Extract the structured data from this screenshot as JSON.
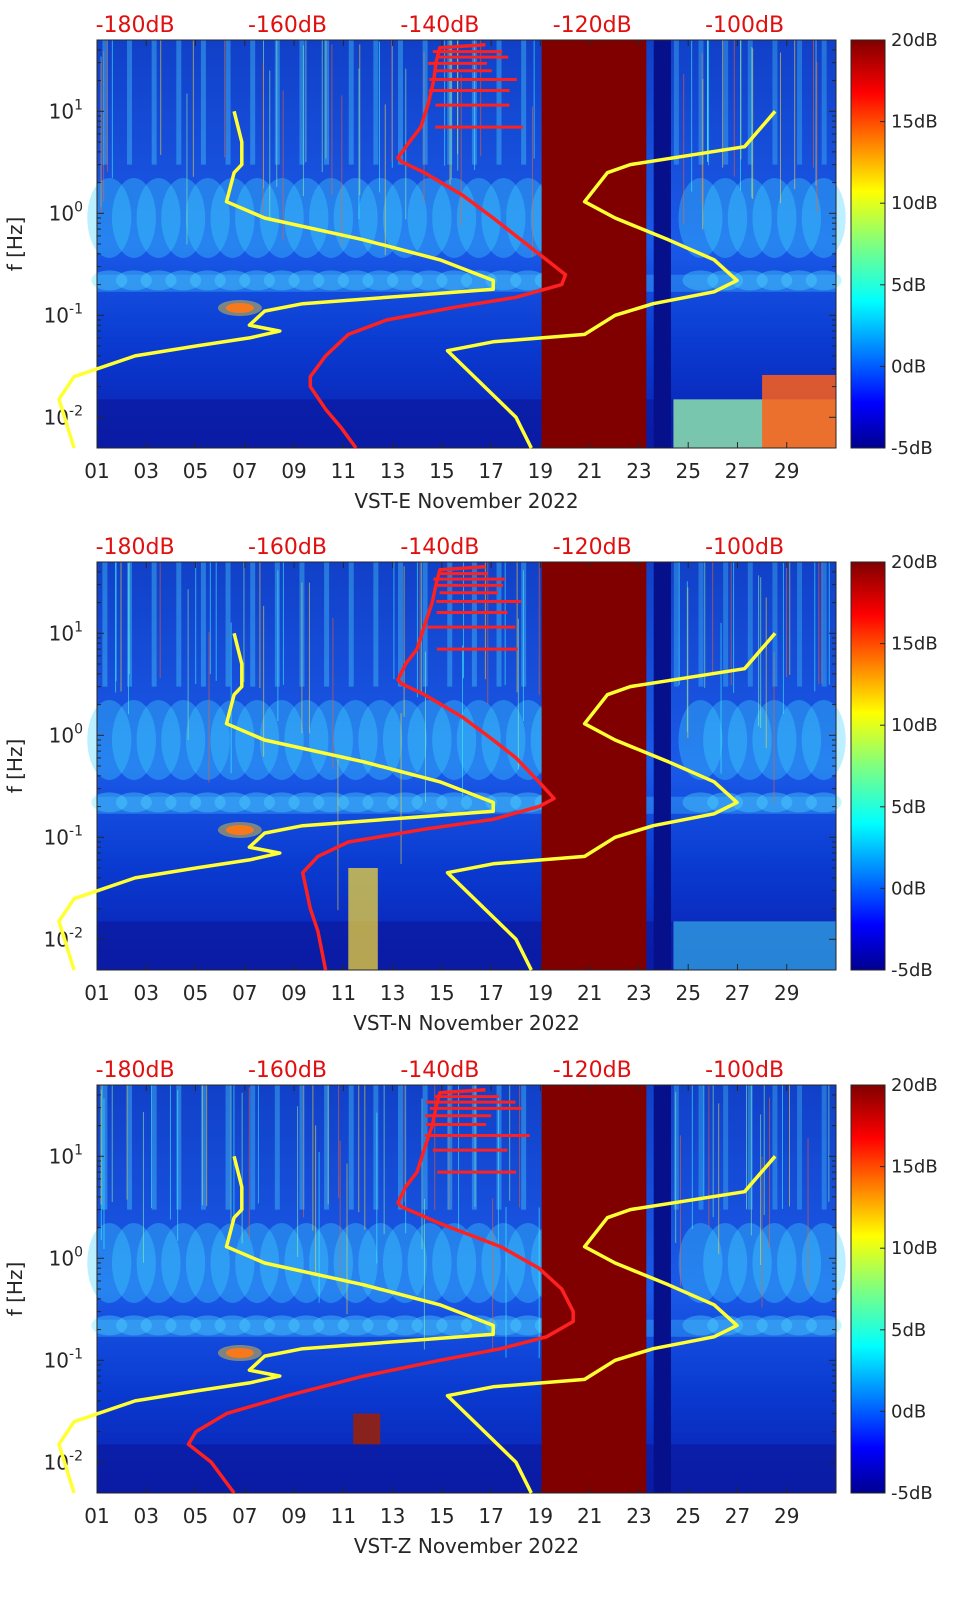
{
  "chart_data": [
    {
      "type": "heatmap",
      "station": "VST-E",
      "xlabel": "VST-E November 2022",
      "ylabel": "f [Hz]",
      "x_ticks": [
        "01",
        "03",
        "05",
        "07",
        "09",
        "11",
        "13",
        "15",
        "17",
        "19",
        "21",
        "23",
        "25",
        "27",
        "29"
      ],
      "x_tick_days": [
        1,
        3,
        5,
        7,
        9,
        11,
        13,
        15,
        17,
        19,
        21,
        23,
        25,
        27,
        29
      ],
      "xlim_days": [
        1,
        31
      ],
      "y_scale": "log",
      "ylim_hz": [
        0.005,
        50
      ],
      "y_ticks": [
        "10-2",
        "10-1",
        "100",
        "101"
      ],
      "y_tick_values": [
        0.01,
        0.1,
        1,
        10
      ],
      "top_axis_ticks": [
        "-180dB",
        "-160dB",
        "-140dB",
        "-120dB",
        "-100dB"
      ],
      "top_axis_values_db": [
        -180,
        -160,
        -140,
        -120,
        -100
      ],
      "colorbar": {
        "ticks": [
          "20dB",
          "15dB",
          "10dB",
          "5dB",
          "0dB",
          "-5dB"
        ],
        "range_db": [
          -5,
          20
        ],
        "colormap": "jet"
      },
      "saturated_band_days": [
        19.05,
        23.3
      ],
      "gap_band_days": [
        23.6,
        24.3
      ],
      "series": [
        {
          "color": "#ff2020",
          "points": [
            [
              -134,
              45
            ],
            [
              -140,
              42
            ],
            [
              -140.5,
              30
            ],
            [
              -140.8,
              20
            ],
            [
              -141.5,
              12
            ],
            [
              -142.5,
              7
            ],
            [
              -144,
              5
            ],
            [
              -145.5,
              3.5
            ],
            [
              -145,
              3.2
            ],
            [
              -142,
              2.5
            ],
            [
              -137,
              1.5
            ],
            [
              -133,
              0.9
            ],
            [
              -130,
              0.6
            ],
            [
              -126,
              0.35
            ],
            [
              -123.5,
              0.25
            ],
            [
              -124,
              0.2
            ],
            [
              -130,
              0.15
            ],
            [
              -138,
              0.12
            ],
            [
              -147,
              0.09
            ],
            [
              -152,
              0.065
            ],
            [
              -155,
              0.04
            ],
            [
              -157,
              0.025
            ],
            [
              -157,
              0.02
            ],
            [
              -155,
              0.012
            ],
            [
              -153,
              0.008
            ],
            [
              -151,
              0.005
            ]
          ]
        },
        {
          "color": "#ffff33",
          "points": [
            [
              -167,
              10
            ],
            [
              -166,
              5
            ],
            [
              -166,
              3
            ],
            [
              -167,
              2.5
            ],
            [
              -168,
              1.3
            ],
            [
              -163,
              0.9
            ],
            [
              -150,
              0.55
            ],
            [
              -140,
              0.35
            ],
            [
              -133,
              0.22
            ],
            [
              -133,
              0.18
            ],
            [
              -142,
              0.16
            ],
            [
              -158,
              0.13
            ],
            [
              -163,
              0.11
            ],
            [
              -165,
              0.08
            ],
            [
              -161,
              0.07
            ],
            [
              -165,
              0.06
            ],
            [
              -172,
              0.05
            ],
            [
              -180,
              0.04
            ],
            [
              -188,
              0.025
            ],
            [
              -190,
              0.015
            ],
            [
              -188,
              0.005
            ]
          ]
        },
        {
          "color": "#ffff33",
          "points": [
            [
              -96,
              10
            ],
            [
              -100,
              4.5
            ],
            [
              -115,
              3
            ],
            [
              -118,
              2.5
            ],
            [
              -121,
              1.3
            ],
            [
              -117,
              0.9
            ],
            [
              -110,
              0.55
            ],
            [
              -104,
              0.35
            ],
            [
              -101,
              0.22
            ],
            [
              -104,
              0.17
            ],
            [
              -112,
              0.13
            ],
            [
              -117,
              0.1
            ],
            [
              -121,
              0.065
            ],
            [
              -133,
              0.055
            ],
            [
              -139,
              0.045
            ],
            [
              -130,
              0.01
            ],
            [
              -128,
              0.005
            ]
          ]
        }
      ]
    },
    {
      "type": "heatmap",
      "station": "VST-N",
      "xlabel": "VST-N November 2022",
      "ylabel": "f [Hz]",
      "x_ticks": [
        "01",
        "03",
        "05",
        "07",
        "09",
        "11",
        "13",
        "15",
        "17",
        "19",
        "21",
        "23",
        "25",
        "27",
        "29"
      ],
      "x_tick_days": [
        1,
        3,
        5,
        7,
        9,
        11,
        13,
        15,
        17,
        19,
        21,
        23,
        25,
        27,
        29
      ],
      "xlim_days": [
        1,
        31
      ],
      "y_scale": "log",
      "ylim_hz": [
        0.005,
        50
      ],
      "y_ticks": [
        "10-2",
        "10-1",
        "100",
        "101"
      ],
      "y_tick_values": [
        0.01,
        0.1,
        1,
        10
      ],
      "top_axis_ticks": [
        "-180dB",
        "-160dB",
        "-140dB",
        "-120dB",
        "-100dB"
      ],
      "top_axis_values_db": [
        -180,
        -160,
        -140,
        -120,
        -100
      ],
      "colorbar": {
        "ticks": [
          "20dB",
          "15dB",
          "10dB",
          "5dB",
          "0dB",
          "-5dB"
        ],
        "range_db": [
          -5,
          20
        ],
        "colormap": "jet"
      },
      "saturated_band_days": [
        19.05,
        23.3
      ],
      "gap_band_days": [
        23.6,
        24.3
      ],
      "series": [
        {
          "color": "#ff2020",
          "points": [
            [
              -134,
              45
            ],
            [
              -140,
              42
            ],
            [
              -140.5,
              30
            ],
            [
              -141,
              20
            ],
            [
              -142,
              12
            ],
            [
              -143,
              7
            ],
            [
              -144.5,
              5
            ],
            [
              -145.5,
              3.5
            ],
            [
              -145,
              3.2
            ],
            [
              -142,
              2.5
            ],
            [
              -137,
              1.5
            ],
            [
              -133,
              0.9
            ],
            [
              -130,
              0.6
            ],
            [
              -127,
              0.35
            ],
            [
              -125,
              0.24
            ],
            [
              -127,
              0.2
            ],
            [
              -133,
              0.15
            ],
            [
              -142,
              0.12
            ],
            [
              -152,
              0.09
            ],
            [
              -156,
              0.065
            ],
            [
              -158,
              0.045
            ],
            [
              -157.5,
              0.03
            ],
            [
              -157,
              0.02
            ],
            [
              -156,
              0.012
            ],
            [
              -155,
              0.005
            ]
          ]
        },
        {
          "color": "#ffff33",
          "points": [
            [
              -167,
              10
            ],
            [
              -166,
              5
            ],
            [
              -166,
              3
            ],
            [
              -167,
              2.5
            ],
            [
              -168,
              1.3
            ],
            [
              -163,
              0.9
            ],
            [
              -150,
              0.55
            ],
            [
              -140,
              0.35
            ],
            [
              -133,
              0.22
            ],
            [
              -133,
              0.18
            ],
            [
              -142,
              0.16
            ],
            [
              -158,
              0.13
            ],
            [
              -163,
              0.11
            ],
            [
              -165,
              0.08
            ],
            [
              -161,
              0.07
            ],
            [
              -165,
              0.06
            ],
            [
              -172,
              0.05
            ],
            [
              -180,
              0.04
            ],
            [
              -188,
              0.025
            ],
            [
              -190,
              0.015
            ],
            [
              -188,
              0.005
            ]
          ]
        },
        {
          "color": "#ffff33",
          "points": [
            [
              -96,
              10
            ],
            [
              -100,
              4.5
            ],
            [
              -115,
              3
            ],
            [
              -118,
              2.5
            ],
            [
              -121,
              1.3
            ],
            [
              -117,
              0.9
            ],
            [
              -110,
              0.55
            ],
            [
              -104,
              0.35
            ],
            [
              -101,
              0.22
            ],
            [
              -104,
              0.17
            ],
            [
              -112,
              0.13
            ],
            [
              -117,
              0.1
            ],
            [
              -121,
              0.065
            ],
            [
              -133,
              0.055
            ],
            [
              -139,
              0.045
            ],
            [
              -130,
              0.01
            ],
            [
              -128,
              0.005
            ]
          ]
        }
      ]
    },
    {
      "type": "heatmap",
      "station": "VST-Z",
      "xlabel": "VST-Z November 2022",
      "ylabel": "f [Hz]",
      "x_ticks": [
        "01",
        "03",
        "05",
        "07",
        "09",
        "11",
        "13",
        "15",
        "17",
        "19",
        "21",
        "23",
        "25",
        "27",
        "29"
      ],
      "x_tick_days": [
        1,
        3,
        5,
        7,
        9,
        11,
        13,
        15,
        17,
        19,
        21,
        23,
        25,
        27,
        29
      ],
      "xlim_days": [
        1,
        31
      ],
      "y_scale": "log",
      "ylim_hz": [
        0.005,
        50
      ],
      "y_ticks": [
        "10-2",
        "10-1",
        "100",
        "101"
      ],
      "y_tick_values": [
        0.01,
        0.1,
        1,
        10
      ],
      "top_axis_ticks": [
        "-180dB",
        "-160dB",
        "-140dB",
        "-120dB",
        "-100dB"
      ],
      "top_axis_values_db": [
        -180,
        -160,
        -140,
        -120,
        -100
      ],
      "colorbar": {
        "ticks": [
          "20dB",
          "15dB",
          "10dB",
          "5dB",
          "0dB",
          "-5dB"
        ],
        "range_db": [
          -5,
          20
        ],
        "colormap": "jet"
      },
      "saturated_band_days": [
        19.05,
        23.3
      ],
      "gap_band_days": [
        23.6,
        24.3
      ],
      "series": [
        {
          "color": "#ff2020",
          "points": [
            [
              -134,
              45
            ],
            [
              -140,
              42
            ],
            [
              -140.5,
              30
            ],
            [
              -141,
              20
            ],
            [
              -142,
              12
            ],
            [
              -143,
              7
            ],
            [
              -144.5,
              5
            ],
            [
              -145.5,
              3.5
            ],
            [
              -145,
              3.2
            ],
            [
              -140,
              2.2
            ],
            [
              -132,
              1.3
            ],
            [
              -127,
              0.8
            ],
            [
              -124,
              0.5
            ],
            [
              -122.5,
              0.3
            ],
            [
              -122.5,
              0.24
            ],
            [
              -126,
              0.17
            ],
            [
              -132,
              0.13
            ],
            [
              -140,
              0.1
            ],
            [
              -150,
              0.07
            ],
            [
              -160,
              0.045
            ],
            [
              -168,
              0.03
            ],
            [
              -172,
              0.02
            ],
            [
              -173,
              0.015
            ],
            [
              -170,
              0.01
            ],
            [
              -167,
              0.005
            ]
          ]
        },
        {
          "color": "#ffff33",
          "points": [
            [
              -167,
              10
            ],
            [
              -166,
              5
            ],
            [
              -166,
              3
            ],
            [
              -167,
              2.5
            ],
            [
              -168,
              1.3
            ],
            [
              -163,
              0.9
            ],
            [
              -150,
              0.55
            ],
            [
              -140,
              0.35
            ],
            [
              -133,
              0.22
            ],
            [
              -133,
              0.18
            ],
            [
              -142,
              0.16
            ],
            [
              -158,
              0.13
            ],
            [
              -163,
              0.11
            ],
            [
              -165,
              0.08
            ],
            [
              -161,
              0.07
            ],
            [
              -165,
              0.06
            ],
            [
              -172,
              0.05
            ],
            [
              -180,
              0.04
            ],
            [
              -188,
              0.025
            ],
            [
              -190,
              0.015
            ],
            [
              -188,
              0.005
            ]
          ]
        },
        {
          "color": "#ffff33",
          "points": [
            [
              -96,
              10
            ],
            [
              -100,
              4.5
            ],
            [
              -115,
              3
            ],
            [
              -118,
              2.5
            ],
            [
              -121,
              1.3
            ],
            [
              -117,
              0.9
            ],
            [
              -110,
              0.55
            ],
            [
              -104,
              0.35
            ],
            [
              -101,
              0.22
            ],
            [
              -104,
              0.17
            ],
            [
              -112,
              0.13
            ],
            [
              -117,
              0.1
            ],
            [
              -121,
              0.065
            ],
            [
              -133,
              0.055
            ],
            [
              -139,
              0.045
            ],
            [
              -130,
              0.01
            ],
            [
              -128,
              0.005
            ]
          ]
        }
      ]
    }
  ]
}
